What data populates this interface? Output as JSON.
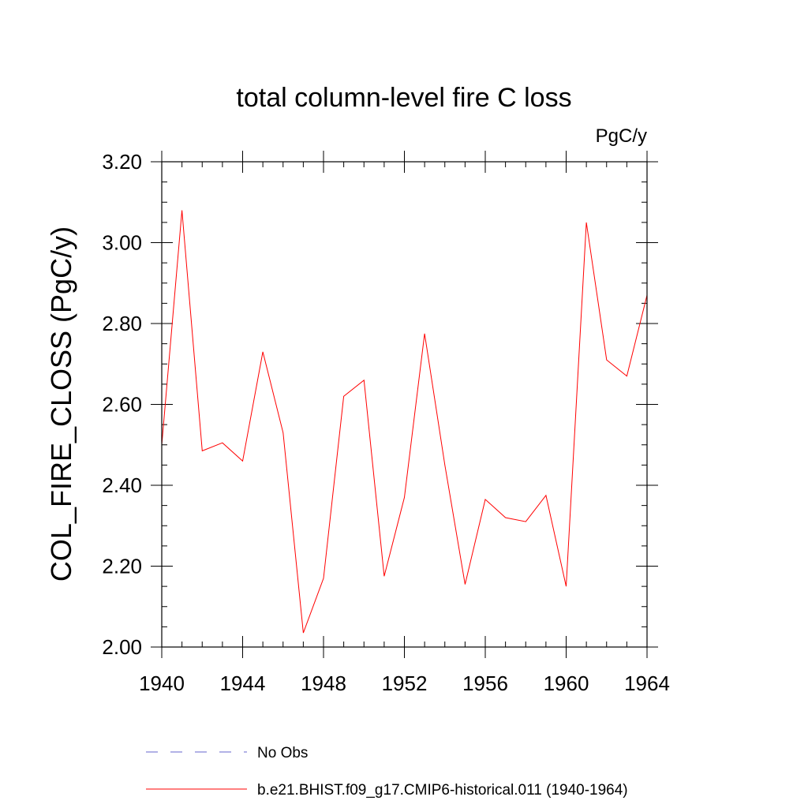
{
  "chart_data": {
    "type": "line",
    "title": "total column-level fire C loss",
    "units_label": "PgC/y",
    "ylabel": "COL_FIRE_CLOSS  (PgC/y)",
    "xlabel": "",
    "xlim": [
      1940,
      1964
    ],
    "ylim": [
      2.0,
      3.2
    ],
    "x_ticks": [
      1940,
      1944,
      1948,
      1952,
      1956,
      1960,
      1964
    ],
    "x_tick_labels": [
      "1940",
      "1944",
      "1948",
      "1952",
      "1956",
      "1960",
      "1964"
    ],
    "y_ticks": [
      2.0,
      2.2,
      2.4,
      2.6,
      2.8,
      3.0,
      3.2
    ],
    "y_tick_labels": [
      "2.00",
      "2.20",
      "2.40",
      "2.60",
      "2.80",
      "3.00",
      "3.20"
    ],
    "grid": false,
    "legend_placement": "bottom",
    "series": [
      {
        "name": "b.e21.BHIST.f09_g17.CMIP6-historical.011 (1940-1964)",
        "color": "#ff0000",
        "style": "solid",
        "x": [
          1940,
          1941,
          1942,
          1943,
          1944,
          1945,
          1946,
          1947,
          1948,
          1949,
          1950,
          1951,
          1952,
          1953,
          1954,
          1955,
          1956,
          1957,
          1958,
          1959,
          1960,
          1961,
          1962,
          1963,
          1964
        ],
        "y": [
          2.5,
          3.08,
          2.485,
          2.505,
          2.46,
          2.73,
          2.53,
          2.035,
          2.17,
          2.62,
          2.66,
          2.175,
          2.37,
          2.775,
          2.45,
          2.155,
          2.365,
          2.32,
          2.31,
          2.375,
          2.15,
          3.05,
          2.71,
          2.67,
          2.87
        ]
      }
    ],
    "legend": [
      {
        "label": "No Obs",
        "color": "#6666cc",
        "style": "dashed"
      },
      {
        "label": "b.e21.BHIST.f09_g17.CMIP6-historical.011 (1940-1964)",
        "color": "#ff0000",
        "style": "solid"
      }
    ]
  }
}
